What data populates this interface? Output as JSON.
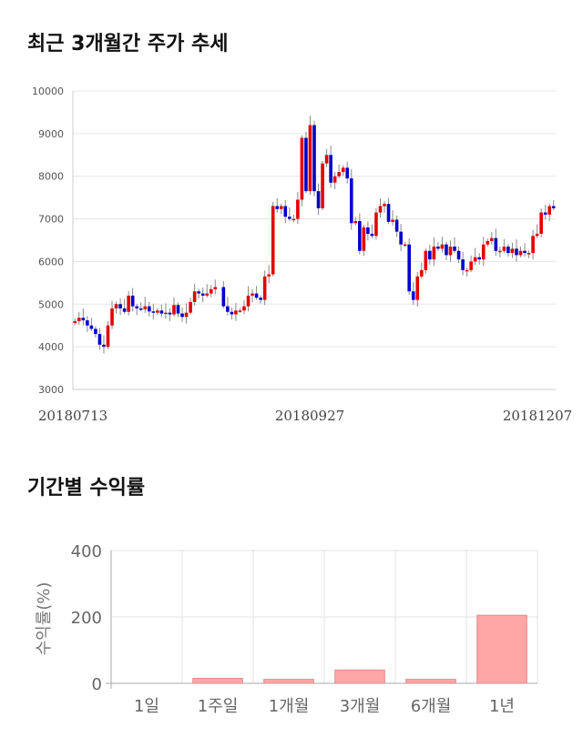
{
  "sections": {
    "price_title": "최근 3개월간 주가 추세",
    "return_title": "기간별 수익률"
  },
  "chart_data": [
    {
      "type": "candlestick",
      "ylim": [
        3000,
        10000
      ],
      "yticks": [
        3000,
        4000,
        5000,
        6000,
        7000,
        8000,
        9000,
        10000
      ],
      "xticks": [
        "20180713",
        "20180927",
        "20181207"
      ],
      "grid": true,
      "colors": {
        "up": "#e60000",
        "down": "#0000cc",
        "wick": "#888888"
      },
      "series": {
        "close": [
          4600,
          4680,
          4620,
          4500,
          4420,
          4300,
          4050,
          4000,
          4500,
          4900,
          5000,
          4900,
          4820,
          5200,
          4950,
          4900,
          4880,
          4950,
          4830,
          4800,
          4850,
          4780,
          4800,
          4760,
          4980,
          4780,
          4700,
          4800,
          5050,
          5300,
          5250,
          5200,
          5250,
          5350,
          5400,
          null,
          4950,
          4820,
          4760,
          4850,
          4850,
          4950,
          5200,
          5250,
          5150,
          5100,
          5650,
          5700,
          7300,
          7230,
          7300,
          7050,
          7000,
          7000,
          7450,
          8900,
          7650,
          9200,
          7650,
          7250,
          8300,
          8500,
          7850,
          8000,
          8100,
          8200,
          7950,
          6900,
          6950,
          6250,
          6800,
          6650,
          6600,
          7150,
          7300,
          7350,
          6930,
          6980,
          6700,
          6400,
          6400,
          5300,
          5100,
          5650,
          5800,
          6250,
          6050,
          6350,
          6300,
          6400,
          6150,
          6350,
          6250,
          6050,
          5800,
          5800,
          6000,
          6100,
          6050,
          6400,
          6480,
          6550,
          6250,
          6250,
          6350,
          6200,
          6300,
          6150,
          6250,
          6200,
          6200,
          6600,
          6650,
          7150,
          7100,
          7300,
          7250
        ]
      }
    },
    {
      "type": "bar",
      "categories": [
        "1일",
        "1주일",
        "1개월",
        "3개월",
        "6개월",
        "1년"
      ],
      "values": [
        0,
        15,
        12,
        40,
        12,
        205
      ],
      "ylabel": "수익률(%)",
      "yticks": [
        0,
        200,
        400
      ],
      "ylim": [
        0,
        400
      ],
      "grid": true,
      "colors": {
        "bar": "#ffa6a6",
        "bar_edge": "#e28b8b"
      }
    }
  ]
}
